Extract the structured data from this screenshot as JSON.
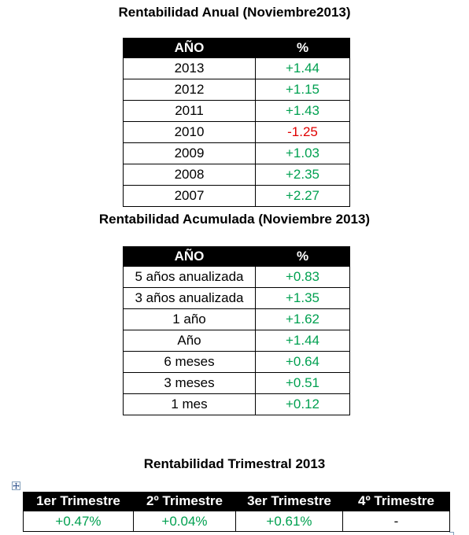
{
  "colors": {
    "header_bg": "#000000",
    "header_text": "#ffffff",
    "positive": "#00a050",
    "negative": "#e00000"
  },
  "anual": {
    "title": "Rentabilidad Anual (Noviembre2013)",
    "headers": [
      "AÑO",
      "%"
    ],
    "rows": [
      {
        "label": "2013",
        "value": "+1.44"
      },
      {
        "label": "2012",
        "value": "+1.15"
      },
      {
        "label": "2011",
        "value": "+1.43"
      },
      {
        "label": "2010",
        "value": "-1.25"
      },
      {
        "label": "2009",
        "value": "+1.03"
      },
      {
        "label": "2008",
        "value": "+2.35"
      },
      {
        "label": "2007",
        "value": "+2.27"
      }
    ]
  },
  "acumulada": {
    "title": "Rentabilidad Acumulada (Noviembre 2013)",
    "headers": [
      "AÑO",
      "%"
    ],
    "rows": [
      {
        "label": "5 años anualizada",
        "value": "+0.83"
      },
      {
        "label": "3 años anualizada",
        "value": "+1.35"
      },
      {
        "label": "1 año",
        "value": "+1.62"
      },
      {
        "label": "Año",
        "value": "+1.44"
      },
      {
        "label": "6 meses",
        "value": "+0.64"
      },
      {
        "label": "3 meses",
        "value": "+0.51"
      },
      {
        "label": "1 mes",
        "value": "+0.12"
      }
    ]
  },
  "trimestral": {
    "title": "Rentabilidad Trimestral 2013",
    "headers": [
      "1er Trimestre",
      "2º Trimestre",
      "3er Trimestre",
      "4º Trimestre"
    ],
    "values": [
      "+0.47%",
      "+0.04%",
      "+0.61%",
      "-"
    ]
  },
  "icons": {
    "table_move_handle": "move-arrows-icon"
  }
}
